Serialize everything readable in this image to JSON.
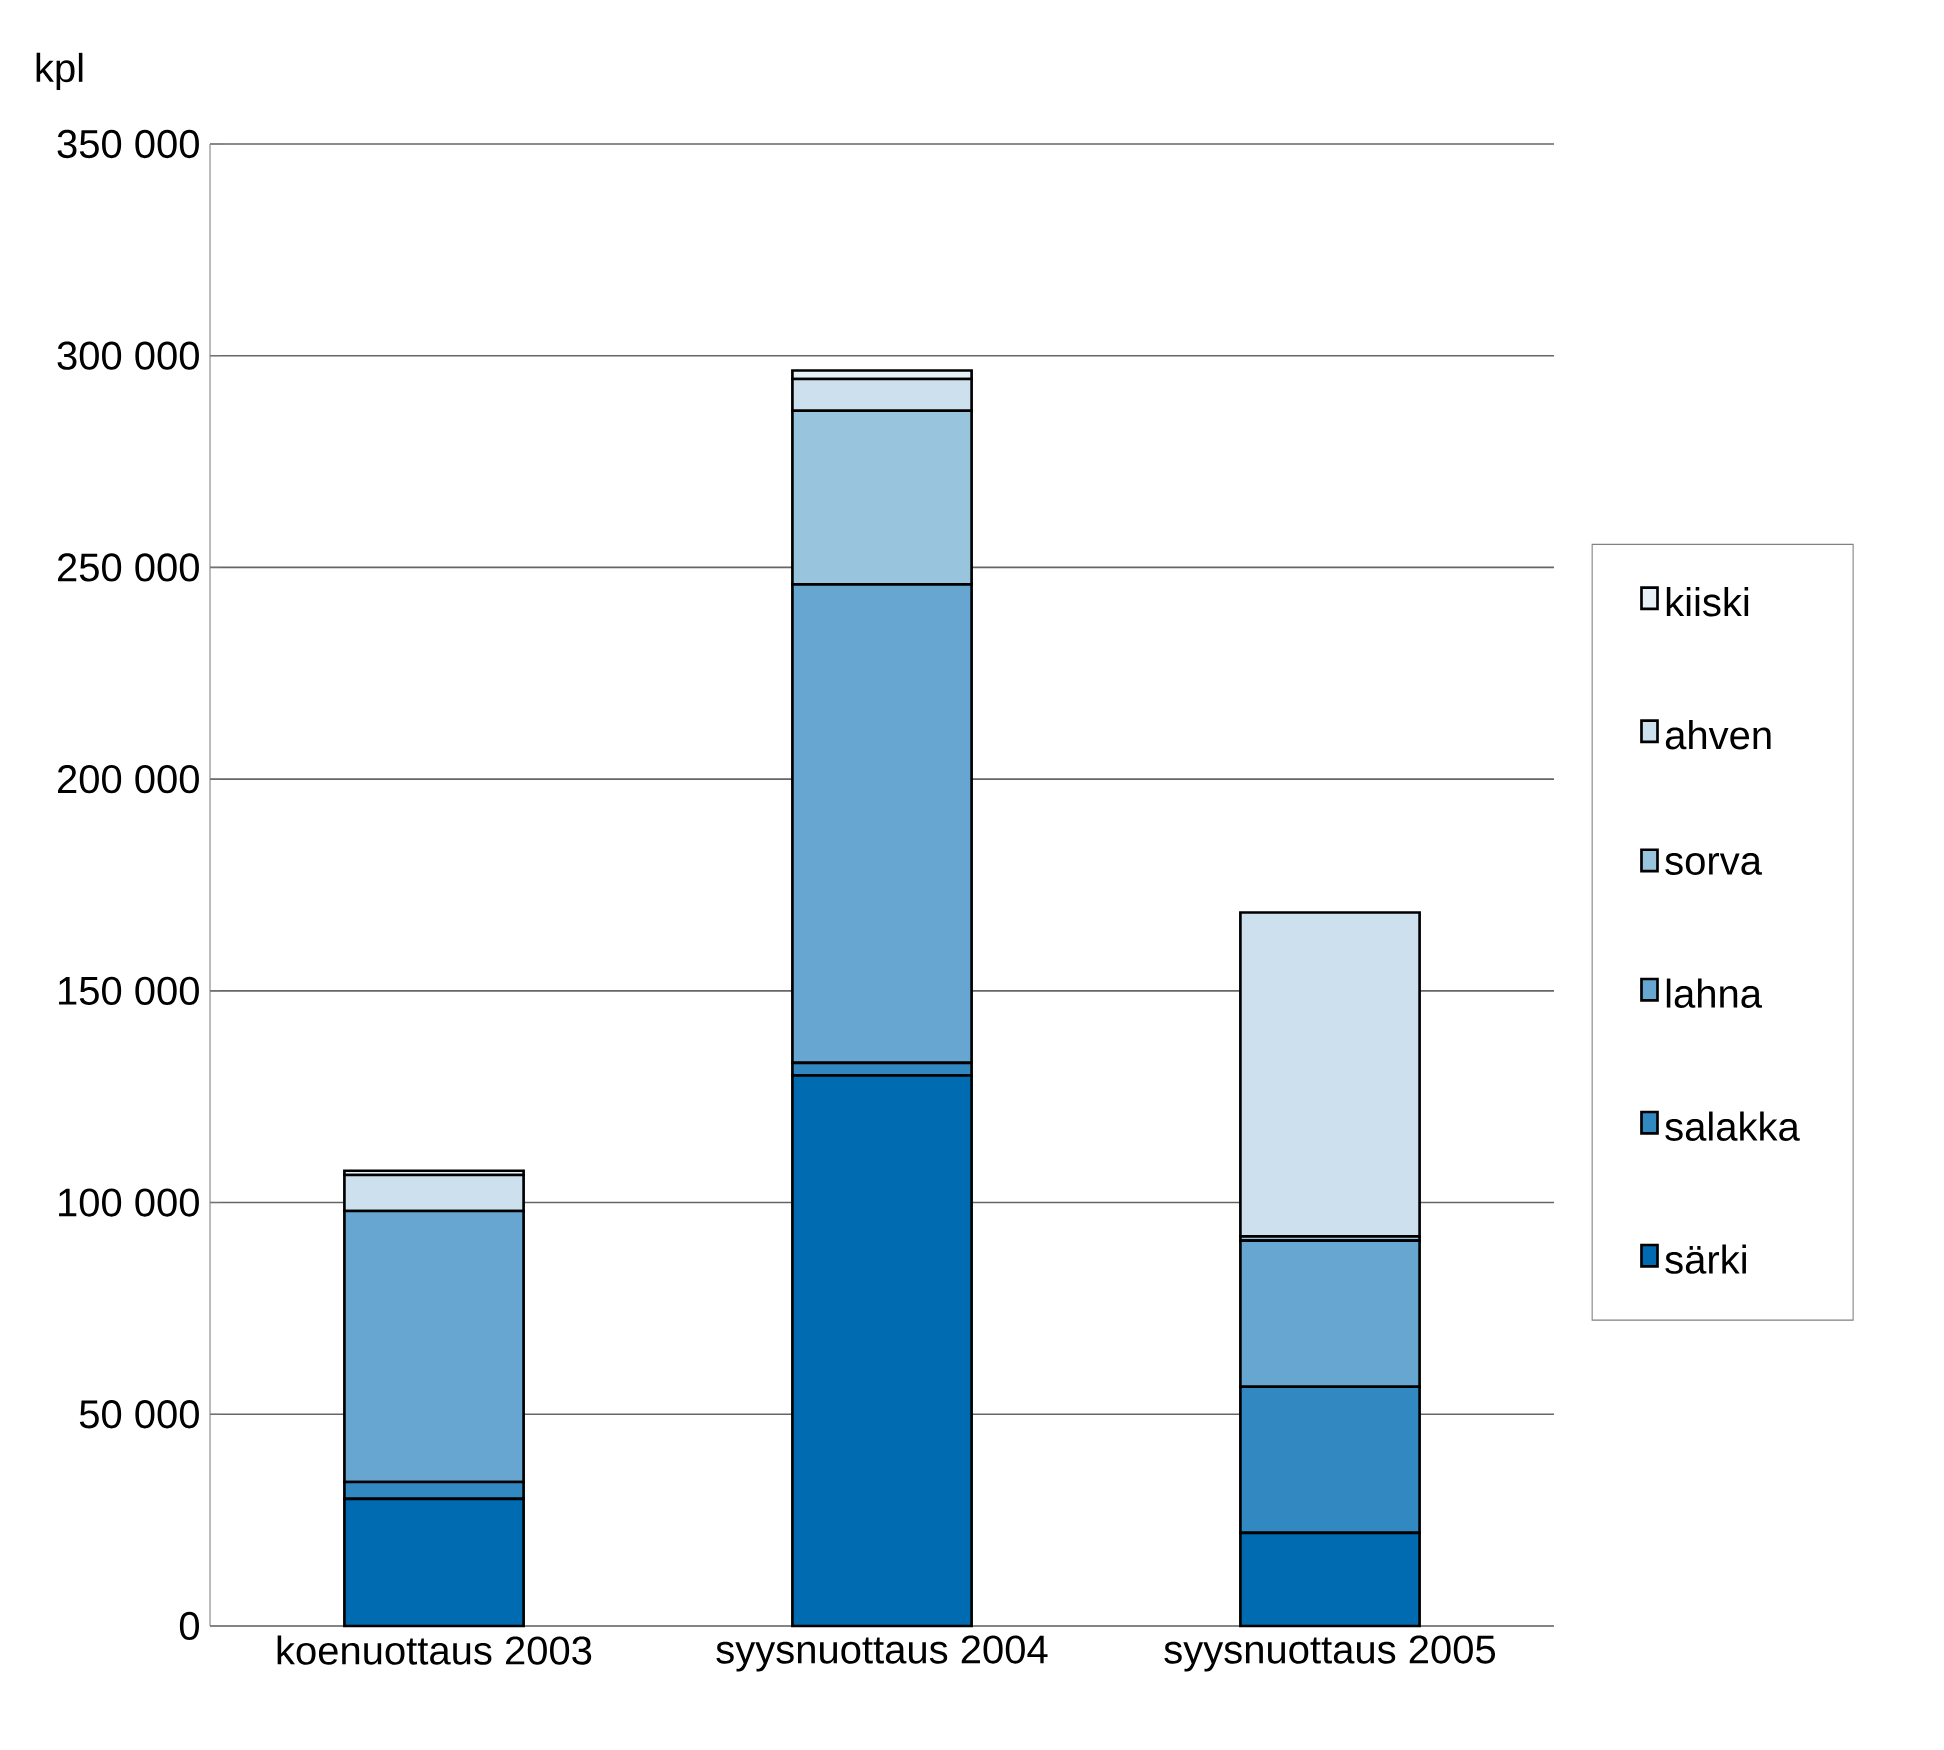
{
  "chart_data": {
    "type": "bar",
    "stacked": true,
    "ylabel": "kpl",
    "categories": [
      "koenuottaus 2003",
      "syysnuottaus 2004",
      "syysnuottaus 2005"
    ],
    "series": [
      {
        "name": "särki",
        "color": "#006bb0",
        "values": [
          30000,
          130000,
          22000
        ]
      },
      {
        "name": "salakka",
        "color": "#3288c0",
        "values": [
          4000,
          3000,
          34500
        ]
      },
      {
        "name": "lahna",
        "color": "#66a6d0",
        "values": [
          64000,
          113000,
          34500
        ]
      },
      {
        "name": "sorva",
        "color": "#99c4de",
        "values": [
          0,
          41000,
          1000
        ]
      },
      {
        "name": "ahven",
        "color": "#cce1ed",
        "values": [
          8500,
          7500,
          76500
        ]
      },
      {
        "name": "kiiski",
        "color": "#e5f0f7",
        "values": [
          1000,
          2000,
          0
        ]
      }
    ],
    "ylim": [
      0,
      350000
    ],
    "yticks": [
      {
        "value": 0,
        "label": "0"
      },
      {
        "value": 50000,
        "label": "50 000"
      },
      {
        "value": 100000,
        "label": "100 000"
      },
      {
        "value": 150000,
        "label": "150 000"
      },
      {
        "value": 200000,
        "label": "200 000"
      },
      {
        "value": 250000,
        "label": "250 000"
      },
      {
        "value": 300000,
        "label": "300 000"
      },
      {
        "value": 350000,
        "label": "350 000"
      }
    ],
    "grid": "y",
    "legend": "right"
  }
}
